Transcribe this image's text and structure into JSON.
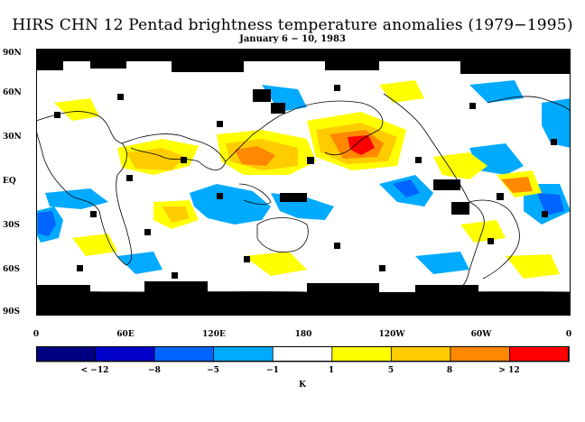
{
  "header": {
    "title": "HIRS CHN 12 Pentad brightness temperature anomalies (1979−1995)",
    "subtitle": "January 6 − 10, 1983"
  },
  "map": {
    "lat_labels": [
      "90N",
      "60N",
      "30N",
      "EQ",
      "30S",
      "60S",
      "90S"
    ],
    "lon_labels": [
      "0",
      "60E",
      "120E",
      "180",
      "120W",
      "60W",
      "0"
    ]
  },
  "colorbar": {
    "colors": [
      "#000080",
      "#0000c8",
      "#0064ff",
      "#00aaff",
      "#ffffff",
      "#ffff00",
      "#ffcc00",
      "#ff8800",
      "#ff0000"
    ],
    "tick_labels": [
      "< −12",
      "−8",
      "−5",
      "−1",
      "1",
      "5",
      "8",
      "> 12"
    ],
    "unit": "K"
  }
}
